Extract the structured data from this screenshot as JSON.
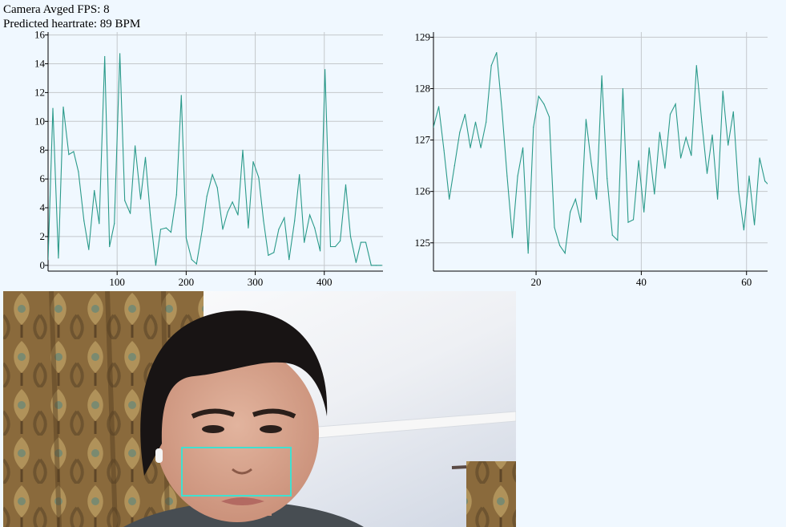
{
  "status": {
    "fps_label": "Camera Avged FPS:",
    "fps_value": "8",
    "hr_label": "Predicted heartrate:",
    "hr_value": "89",
    "hr_unit": "BPM"
  },
  "colors": {
    "page_background": "#f0f8ff",
    "line": "#2a9a8a",
    "grid": "#c4c8cc",
    "axis": "#000000",
    "roi_box": "#40e0d0"
  },
  "chart_data": [
    {
      "type": "line",
      "title": "",
      "xlabel": "",
      "ylabel": "",
      "xlim": [
        0,
        485
      ],
      "ylim": [
        -0.4,
        16.2
      ],
      "xticks": [
        100,
        200,
        300,
        400
      ],
      "yticks": [
        0,
        2,
        4,
        6,
        8,
        10,
        12,
        14,
        16
      ],
      "grid": true,
      "series": [
        {
          "x": [
            0,
            7,
            15,
            22,
            30,
            37,
            44,
            52,
            59,
            67,
            74,
            82,
            89,
            96,
            104,
            111,
            119,
            126,
            134,
            141,
            148,
            156,
            163,
            171,
            178,
            186,
            193,
            200,
            208,
            215,
            223,
            230,
            238,
            245,
            253,
            260,
            267,
            275,
            282,
            290,
            297,
            305,
            312,
            319,
            327,
            334,
            342,
            349,
            357,
            364,
            371,
            379,
            386,
            394,
            401,
            409,
            416,
            423,
            431,
            438,
            446,
            453,
            460,
            468,
            475,
            483
          ],
          "y": [
            0.4,
            10.9,
            0.5,
            11.0,
            7.7,
            7.9,
            6.5,
            3.1,
            1.1,
            5.2,
            2.9,
            14.5,
            1.3,
            2.9,
            14.7,
            4.5,
            3.6,
            8.3,
            4.6,
            7.5,
            3.5,
            0.0,
            2.5,
            2.6,
            2.3,
            4.9,
            11.8,
            1.9,
            0.4,
            0.1,
            2.4,
            4.8,
            6.3,
            5.4,
            2.5,
            3.7,
            4.4,
            3.5,
            8.0,
            2.6,
            7.2,
            6.1,
            3.1,
            0.7,
            0.9,
            2.5,
            3.3,
            0.4,
            3.1,
            6.3,
            1.6,
            3.5,
            2.6,
            1.0,
            13.6,
            1.3,
            1.3,
            1.7,
            5.6,
            2.0,
            0.2,
            1.6,
            1.6,
            0.0,
            0.0,
            0.0
          ]
        }
      ]
    },
    {
      "type": "line",
      "title": "",
      "xlabel": "",
      "ylabel": "",
      "xlim": [
        0.5,
        64
      ],
      "ylim": [
        124.45,
        129.1
      ],
      "xticks": [
        20,
        40,
        60
      ],
      "yticks": [
        125,
        126,
        127,
        128,
        129
      ],
      "grid": true,
      "series": [
        {
          "x": [
            0.5,
            1.5,
            2.5,
            3.5,
            4.5,
            5.5,
            6.5,
            7.5,
            8.5,
            9.5,
            10.5,
            11.5,
            12.5,
            13.5,
            14.5,
            15.5,
            16.5,
            17.5,
            18.5,
            19.5,
            20.5,
            21.5,
            22.5,
            23.5,
            24.5,
            25.5,
            26.5,
            27.5,
            28.5,
            29.5,
            30.5,
            31.5,
            32.5,
            33.5,
            34.5,
            35.5,
            36.5,
            37.5,
            38.5,
            39.5,
            40.5,
            41.5,
            42.5,
            43.5,
            44.5,
            45.5,
            46.5,
            47.5,
            48.5,
            49.5,
            50.5,
            51.5,
            52.5,
            53.5,
            54.5,
            55.5,
            56.5,
            57.5,
            58.5,
            59.5,
            60.5,
            61.5,
            62.5,
            63.5,
            64
          ],
          "y": [
            127.25,
            127.65,
            126.8,
            125.85,
            126.5,
            127.15,
            127.5,
            126.85,
            127.35,
            126.85,
            127.35,
            128.45,
            128.7,
            127.6,
            126.3,
            125.1,
            126.3,
            126.85,
            124.8,
            127.25,
            127.85,
            127.7,
            127.45,
            125.3,
            124.95,
            124.8,
            125.6,
            125.85,
            125.4,
            127.4,
            126.55,
            125.85,
            128.25,
            126.25,
            125.15,
            125.05,
            128.0,
            125.4,
            125.45,
            126.6,
            125.6,
            126.85,
            125.95,
            127.15,
            126.45,
            127.5,
            127.7,
            126.65,
            127.05,
            126.7,
            128.45,
            127.35,
            126.35,
            127.1,
            125.85,
            127.95,
            126.9,
            127.55,
            126.0,
            125.25,
            126.3,
            125.35,
            126.65,
            126.2,
            126.15
          ]
        }
      ]
    }
  ]
}
